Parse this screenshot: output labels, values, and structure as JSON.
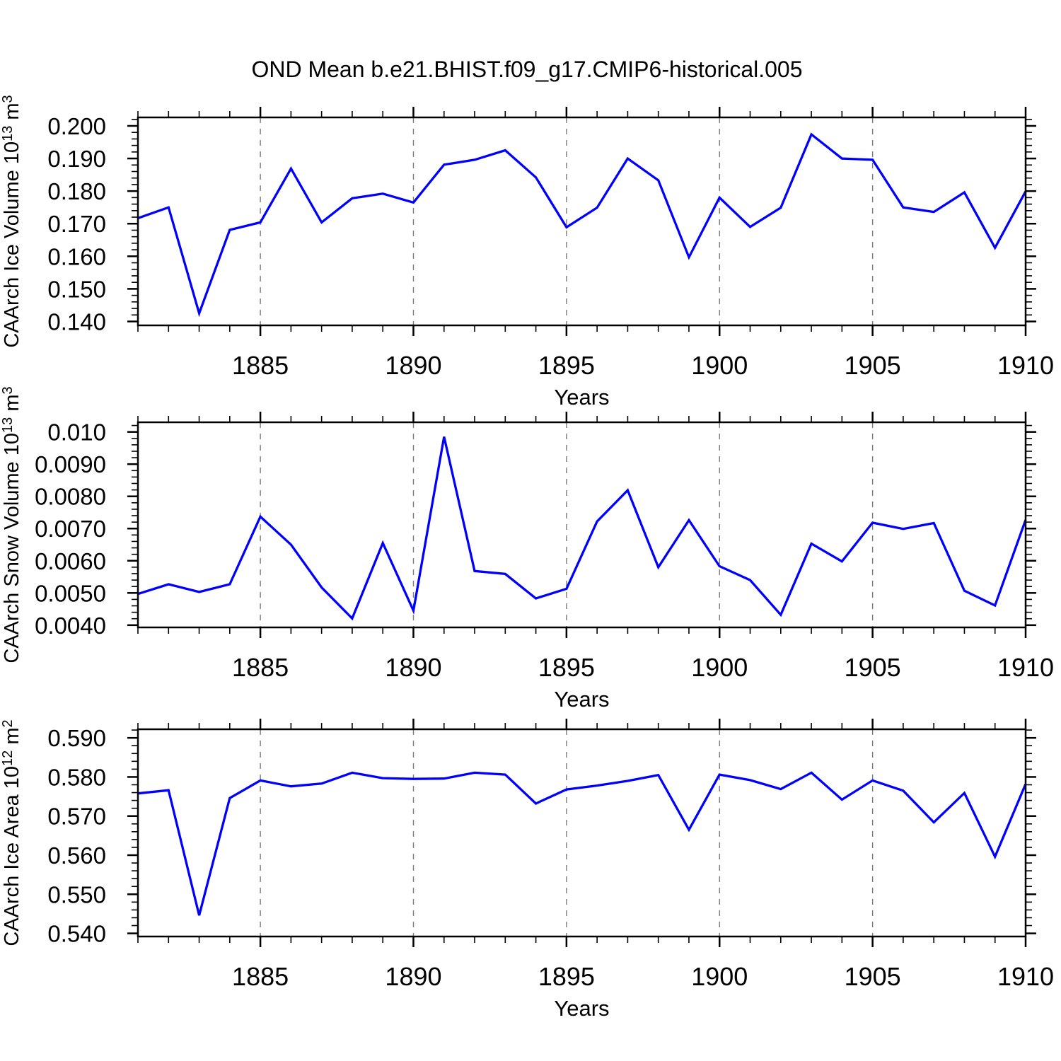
{
  "title": "OND Mean b.e21.BHIST.f09_g17.CMIP6-historical.005",
  "colors": {
    "line": "#0000ff",
    "grid": "#7a7a7a",
    "frame": "#000000",
    "text": "#000000",
    "background": "#ffffff"
  },
  "chart_data": [
    {
      "type": "line",
      "xlabel": "Years",
      "ylabel_segments": [
        {
          "t": "CAArch Ice Volume 10"
        },
        {
          "t": "13",
          "sup": true
        },
        {
          "t": " m"
        },
        {
          "t": "3",
          "sup": true
        }
      ],
      "x": [
        1881,
        1882,
        1883,
        1884,
        1885,
        1886,
        1887,
        1888,
        1889,
        1890,
        1891,
        1892,
        1893,
        1894,
        1895,
        1896,
        1897,
        1898,
        1899,
        1900,
        1901,
        1902,
        1903,
        1904,
        1905,
        1906,
        1907,
        1908,
        1909,
        1910
      ],
      "values": [
        0.1717,
        0.175,
        0.1425,
        0.1681,
        0.1704,
        0.1869,
        0.1704,
        0.1778,
        0.1792,
        0.1765,
        0.1881,
        0.1896,
        0.1925,
        0.1842,
        0.1689,
        0.1749,
        0.19,
        0.1833,
        0.1597,
        0.178,
        0.169,
        0.1749,
        0.1974,
        0.19,
        0.1896,
        0.175,
        0.1736,
        0.1796,
        0.1626,
        0.1799
      ],
      "xlim": [
        1881,
        1910
      ],
      "ylim": [
        0.1388,
        0.2026
      ],
      "xticks": {
        "values": [
          1885,
          1890,
          1895,
          1900,
          1905,
          1910
        ],
        "labels": [
          "1885",
          "1890",
          "1895",
          "1900",
          "1905",
          "1910"
        ]
      },
      "x_minor_step": 1,
      "yticks": {
        "values": [
          0.14,
          0.15,
          0.16,
          0.17,
          0.18,
          0.19,
          0.2
        ],
        "labels": [
          "0.140",
          "0.150",
          "0.160",
          "0.170",
          "0.180",
          "0.190",
          "0.200"
        ]
      },
      "y_minor_step": 0.002,
      "gridlines_x": [
        1885,
        1890,
        1895,
        1900,
        1905
      ],
      "grid": "vertical-dashed",
      "legend": "none"
    },
    {
      "type": "line",
      "xlabel": "Years",
      "ylabel_segments": [
        {
          "t": "CAArch Snow Volume 10"
        },
        {
          "t": "13",
          "sup": true
        },
        {
          "t": " m"
        },
        {
          "t": "3",
          "sup": true
        }
      ],
      "x": [
        1881,
        1882,
        1883,
        1884,
        1885,
        1886,
        1887,
        1888,
        1889,
        1890,
        1891,
        1892,
        1893,
        1894,
        1895,
        1896,
        1897,
        1898,
        1899,
        1900,
        1901,
        1902,
        1903,
        1904,
        1905,
        1906,
        1907,
        1908,
        1909,
        1910
      ],
      "values": [
        0.00497,
        0.00527,
        0.00503,
        0.00527,
        0.00737,
        0.0065,
        0.00517,
        0.00421,
        0.00655,
        0.00445,
        0.00985,
        0.00568,
        0.00559,
        0.00483,
        0.00513,
        0.00722,
        0.00819,
        0.0058,
        0.00726,
        0.00583,
        0.0054,
        0.00432,
        0.00653,
        0.00598,
        0.00718,
        0.00699,
        0.00717,
        0.00507,
        0.00461,
        0.00727
      ],
      "xlim": [
        1881,
        1910
      ],
      "ylim": [
        0.00393,
        0.0103
      ],
      "xticks": {
        "values": [
          1885,
          1890,
          1895,
          1900,
          1905,
          1910
        ],
        "labels": [
          "1885",
          "1890",
          "1895",
          "1900",
          "1905",
          "1910"
        ]
      },
      "x_minor_step": 1,
      "yticks": {
        "values": [
          0.004,
          0.005,
          0.006,
          0.007,
          0.008,
          0.009,
          0.01
        ],
        "labels": [
          "0.0040",
          "0.0050",
          "0.0060",
          "0.0070",
          "0.0080",
          "0.0090",
          "0.010"
        ]
      },
      "y_minor_step": 0.0002,
      "gridlines_x": [
        1885,
        1890,
        1895,
        1900,
        1905
      ],
      "grid": "vertical-dashed",
      "legend": "none"
    },
    {
      "type": "line",
      "xlabel": "Years",
      "ylabel_segments": [
        {
          "t": "CAArch Ice Area 10"
        },
        {
          "t": "12",
          "sup": true
        },
        {
          "t": " m"
        },
        {
          "t": "2",
          "sup": true
        }
      ],
      "x": [
        1881,
        1882,
        1883,
        1884,
        1885,
        1886,
        1887,
        1888,
        1889,
        1890,
        1891,
        1892,
        1893,
        1894,
        1895,
        1896,
        1897,
        1898,
        1899,
        1900,
        1901,
        1902,
        1903,
        1904,
        1905,
        1906,
        1907,
        1908,
        1909,
        1910
      ],
      "values": [
        0.5758,
        0.5766,
        0.5446,
        0.5746,
        0.5791,
        0.5776,
        0.5783,
        0.5811,
        0.5797,
        0.5795,
        0.5796,
        0.5811,
        0.5806,
        0.5732,
        0.5768,
        0.5778,
        0.579,
        0.5805,
        0.5665,
        0.5806,
        0.5792,
        0.5769,
        0.5811,
        0.5742,
        0.5791,
        0.5765,
        0.5684,
        0.5759,
        0.5596,
        0.5782
      ],
      "xlim": [
        1881,
        1910
      ],
      "ylim": [
        0.5392,
        0.5922
      ],
      "xticks": {
        "values": [
          1885,
          1890,
          1895,
          1900,
          1905,
          1910
        ],
        "labels": [
          "1885",
          "1890",
          "1895",
          "1900",
          "1905",
          "1910"
        ]
      },
      "x_minor_step": 1,
      "yticks": {
        "values": [
          0.54,
          0.55,
          0.56,
          0.57,
          0.58,
          0.59
        ],
        "labels": [
          "0.540",
          "0.550",
          "0.560",
          "0.570",
          "0.580",
          "0.590"
        ]
      },
      "y_minor_step": 0.002,
      "gridlines_x": [
        1885,
        1890,
        1895,
        1900,
        1905
      ],
      "grid": "vertical-dashed",
      "legend": "none"
    }
  ]
}
